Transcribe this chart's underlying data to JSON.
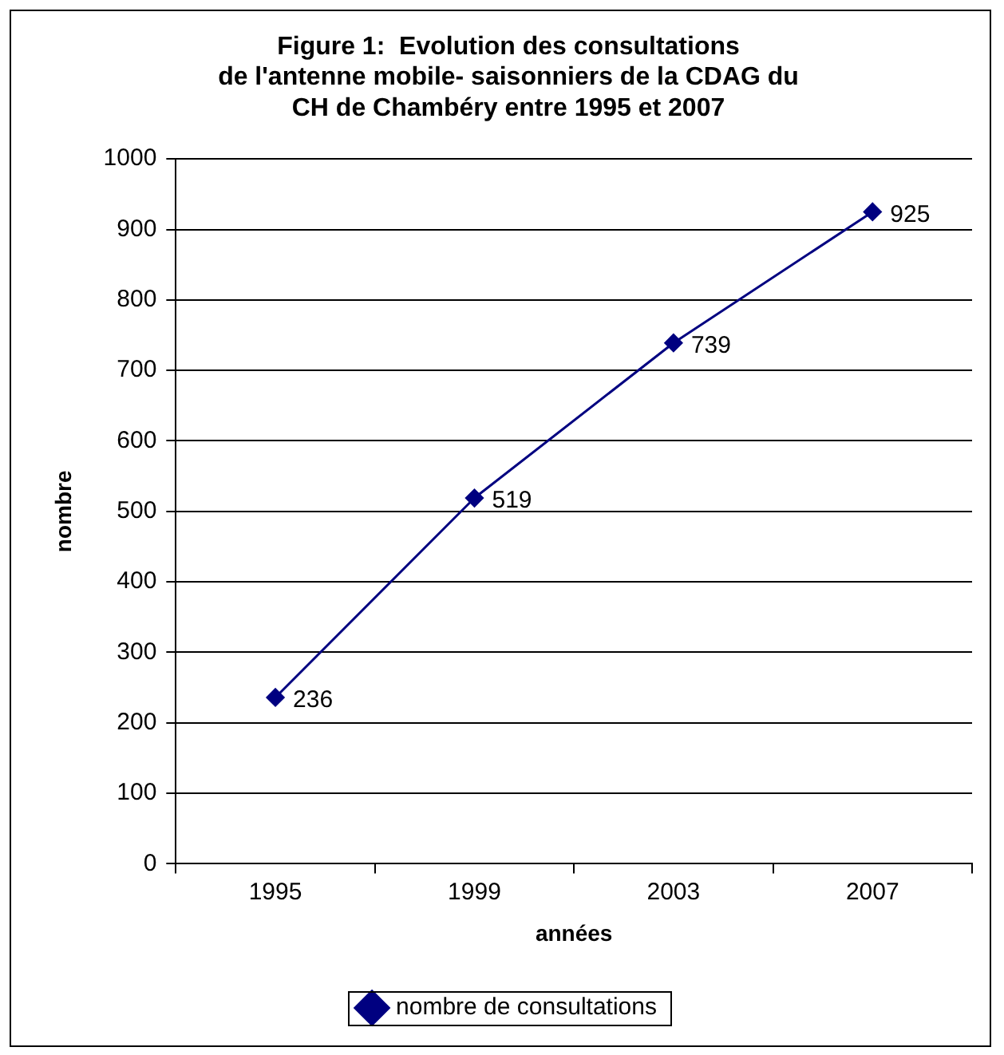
{
  "chart_data": {
    "type": "line",
    "title": "Figure 1:  Evolution des consultations\nde l'antenne mobile- saisonniers de la CDAG du\nCH de Chambéry entre 1995 et 2007",
    "xlabel": "années",
    "ylabel": "nombre",
    "categories": [
      "1995",
      "1999",
      "2003",
      "2007"
    ],
    "series": [
      {
        "name": "nombre de consultations",
        "color": "#000080",
        "values": [
          236,
          519,
          739,
          925
        ]
      }
    ],
    "ylim": [
      0,
      1000
    ],
    "yticks": [
      0,
      100,
      200,
      300,
      400,
      500,
      600,
      700,
      800,
      900,
      1000
    ],
    "grid": "y",
    "legend": "bottom",
    "marker": "diamond",
    "line_style": "solid",
    "data_labels": true
  }
}
